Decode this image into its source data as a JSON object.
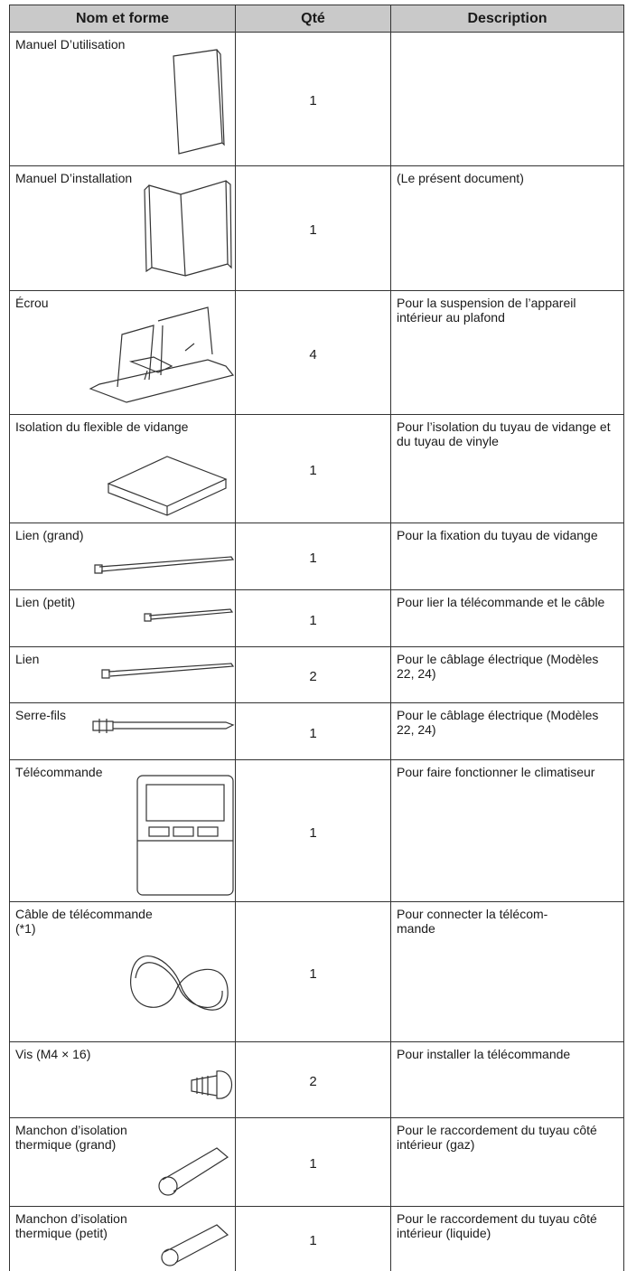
{
  "table": {
    "header": [
      "Nom et forme",
      "Qté",
      "Description"
    ],
    "rows": [
      [
        "Manuel D’utilisation",
        "1",
        ""
      ],
      [
        "Manuel D’installation",
        "1",
        "(Le présent document)"
      ],
      [
        "Écrou",
        "4",
        "Pour la suspension de l’appareil intérieur au plafond"
      ],
      [
        "Isolation du flexible de vidange",
        "1",
        "Pour l’isolation du tuyau de vidange et du tuyau de vinyle"
      ],
      [
        "Lien (grand)",
        "1",
        "Pour la fixation du tuyau de vidange"
      ],
      [
        "Lien (petit)",
        "1",
        "Pour lier la télécommande et le câble"
      ],
      [
        "Lien",
        "2",
        "Pour le câblage électrique (Modèles 22, 24)"
      ],
      [
        "Serre-fils",
        "1",
        "Pour le câblage électrique (Modèles 22, 24)"
      ],
      [
        "Télécommande",
        "1",
        "Pour faire fonctionner le climatiseur"
      ],
      [
        "Câble de télécommande\n(*1)",
        "1",
        "Pour connecter la télécom-\nmande"
      ],
      [
        "Vis (M4 × 16)",
        "2",
        "Pour installer la télécommande"
      ],
      [
        "Manchon d’isolation\nthermique (grand)",
        "1",
        "Pour le raccordement du tuyau côté intérieur (gaz)"
      ],
      [
        "Manchon d’isolation\nthermique (petit)",
        "1",
        "Pour le raccordement du tuyau côté intérieur (liquide)"
      ]
    ]
  }
}
